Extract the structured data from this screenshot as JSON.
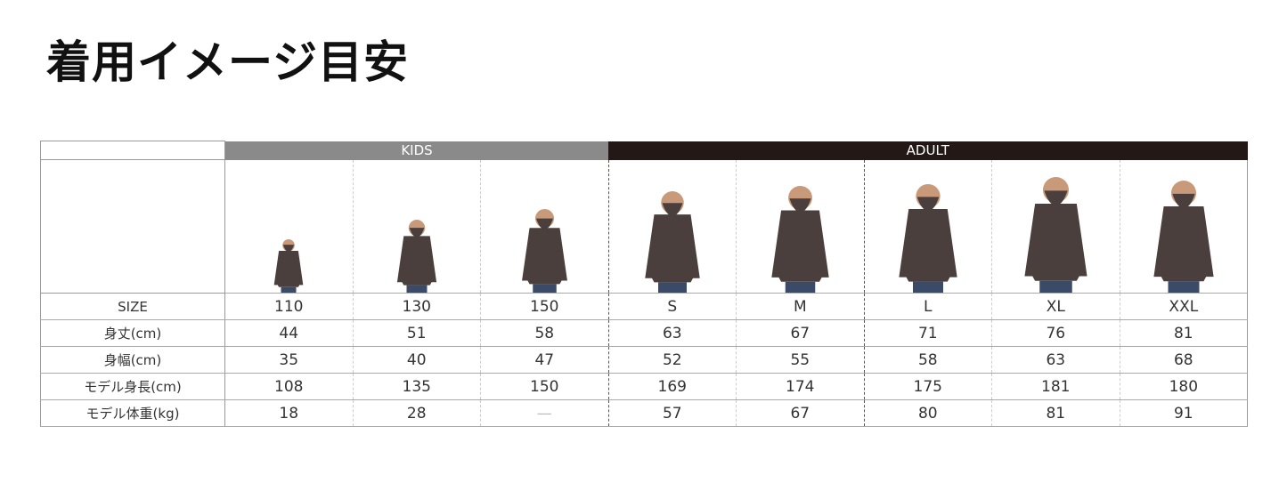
{
  "title": "着用イメージ目安",
  "groups": {
    "kids": "KIDS",
    "adult": "ADULT"
  },
  "colors": {
    "kids_header": "#8a8a8a",
    "adult_header": "#231815",
    "hoodie": "#4a3f3c"
  },
  "rows": [
    {
      "label": "SIZE",
      "values": [
        "110",
        "130",
        "150",
        "S",
        "M",
        "L",
        "XL",
        "XXL"
      ]
    },
    {
      "label": "身丈(cm)",
      "values": [
        "44",
        "51",
        "58",
        "63",
        "67",
        "71",
        "76",
        "81"
      ]
    },
    {
      "label": "身幅(cm)",
      "values": [
        "35",
        "40",
        "47",
        "52",
        "55",
        "58",
        "63",
        "68"
      ]
    },
    {
      "label": "モデル身長(cm)",
      "values": [
        "108",
        "135",
        "150",
        "169",
        "174",
        "175",
        "181",
        "180"
      ]
    },
    {
      "label": "モデル体重(kg)",
      "values": [
        "18",
        "28",
        "—",
        "57",
        "67",
        "80",
        "81",
        "91"
      ]
    }
  ]
}
